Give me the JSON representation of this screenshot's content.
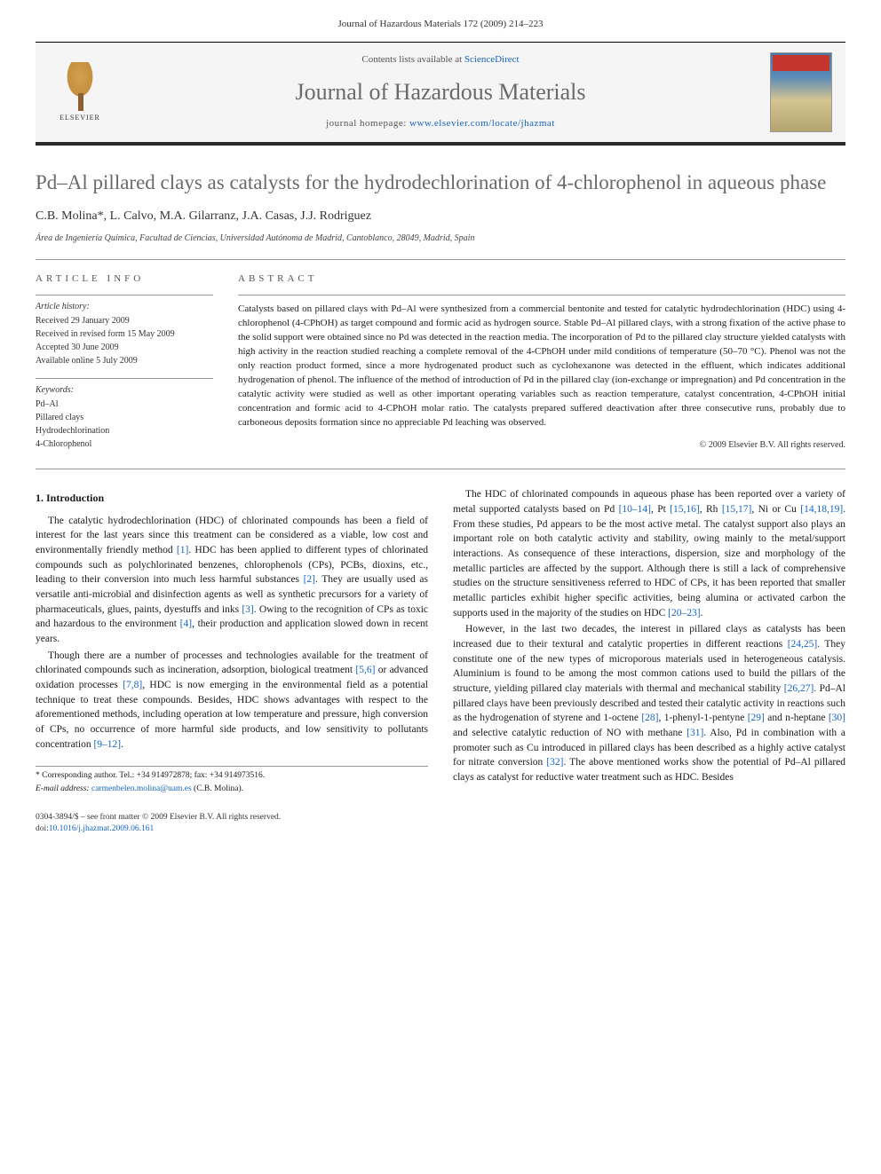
{
  "header_citation": "Journal of Hazardous Materials 172 (2009) 214–223",
  "masthead": {
    "contents_prefix": "Contents lists available at ",
    "contents_link": "ScienceDirect",
    "journal_name": "Journal of Hazardous Materials",
    "homepage_prefix": "journal homepage: ",
    "homepage_url": "www.elsevier.com/locate/jhazmat",
    "publisher_name": "ELSEVIER"
  },
  "article": {
    "title": "Pd–Al pillared clays as catalysts for the hydrodechlorination of 4-chlorophenol in aqueous phase",
    "authors_html": "C.B. Molina*, L. Calvo, M.A. Gilarranz, J.A. Casas, J.J. Rodriguez",
    "affiliation": "Área de Ingeniería Química, Facultad de Ciencias, Universidad Autónoma de Madrid, Cantoblanco, 28049, Madrid, Spain"
  },
  "article_info": {
    "heading": "article info",
    "history_label": "Article history:",
    "received": "Received 29 January 2009",
    "revised": "Received in revised form 15 May 2009",
    "accepted": "Accepted 30 June 2009",
    "online": "Available online 5 July 2009",
    "keywords_label": "Keywords:",
    "keywords": [
      "Pd–Al",
      "Pillared clays",
      "Hydrodechlorination",
      "4-Chlorophenol"
    ]
  },
  "abstract": {
    "heading": "abstract",
    "text": "Catalysts based on pillared clays with Pd–Al were synthesized from a commercial bentonite and tested for catalytic hydrodechlorination (HDC) using 4-chlorophenol (4-CPhOH) as target compound and formic acid as hydrogen source. Stable Pd–Al pillared clays, with a strong fixation of the active phase to the solid support were obtained since no Pd was detected in the reaction media. The incorporation of Pd to the pillared clay structure yielded catalysts with high activity in the reaction studied reaching a complete removal of the 4-CPhOH under mild conditions of temperature (50–70 °C). Phenol was not the only reaction product formed, since a more hydrogenated product such as cyclohexanone was detected in the effluent, which indicates additional hydrogenation of phenol. The influence of the method of introduction of Pd in the pillared clay (ion-exchange or impregnation) and Pd concentration in the catalytic activity were studied as well as other important operating variables such as reaction temperature, catalyst concentration, 4-CPhOH initial concentration and formic acid to 4-CPhOH molar ratio. The catalysts prepared suffered deactivation after three consecutive runs, probably due to carboneous deposits formation since no appreciable Pd leaching was observed.",
    "copyright": "© 2009 Elsevier B.V. All rights reserved."
  },
  "body": {
    "section1_heading": "1. Introduction",
    "p1_pre": "The catalytic hydrodechlorination (HDC) of chlorinated compounds has been a field of interest for the last years since this treatment can be considered as a viable, low cost and environmentally friendly method ",
    "p1_ref1": "[1]",
    "p1_mid1": ". HDC has been applied to different types of chlorinated compounds such as polychlorinated benzenes, chlorophenols (CPs), PCBs, dioxins, etc., leading to their conversion into much less harmful substances ",
    "p1_ref2": "[2]",
    "p1_mid2": ". They are usually used as versatile anti-microbial and disinfection agents as well as synthetic precursors for a variety of pharmaceuticals, glues, paints, dyestuffs and inks ",
    "p1_ref3": "[3]",
    "p1_mid3": ". Owing to the recognition of CPs as toxic and hazardous to the environment ",
    "p1_ref4": "[4]",
    "p1_post": ", their production and application slowed down in recent years.",
    "p2_pre": "Though there are a number of processes and technologies available for the treatment of chlorinated compounds such as incineration, adsorption, biological treatment ",
    "p2_ref1": "[5,6]",
    "p2_mid1": " or advanced oxidation processes ",
    "p2_ref2": "[7,8]",
    "p2_mid2": ", HDC is now emerging in the environmental field as a potential technique to treat these compounds. Besides, HDC shows advantages with respect to the aforementioned methods, including operation at low temperature and pressure, high conversion of CPs, no occurrence of more harmful side products, and low sensitivity to pollutants concentration ",
    "p2_ref3": "[9–12]",
    "p2_post": ".",
    "p3_pre": "The HDC of chlorinated compounds in aqueous phase has been reported over a variety of metal supported catalysts based on Pd ",
    "p3_ref1": "[10–14]",
    "p3_mid1": ", Pt ",
    "p3_ref2": "[15,16]",
    "p3_mid2": ", Rh ",
    "p3_ref3": "[15,17]",
    "p3_mid3": ", Ni or Cu ",
    "p3_ref4": "[14,18,19]",
    "p3_mid4": ". From these studies, Pd appears to be the most active metal. The catalyst support also plays an important role on both catalytic activity and stability, owing mainly to the metal/support interactions. As consequence of these interactions, dispersion, size and morphology of the metallic particles are affected by the support. Although there is still a lack of comprehensive studies on the structure sensitiveness referred to HDC of CPs, it has been reported that smaller metallic particles exhibit higher specific activities, being alumina or activated carbon the supports used in the majority of the studies on HDC ",
    "p3_ref5": "[20–23]",
    "p3_post": ".",
    "p4_pre": "However, in the last two decades, the interest in pillared clays as catalysts has been increased due to their textural and catalytic properties in different reactions ",
    "p4_ref1": "[24,25]",
    "p4_mid1": ". They constitute one of the new types of microporous materials used in heterogeneous catalysis. Aluminium is found to be among the most common cations used to build the pillars of the structure, yielding pillared clay materials with thermal and mechanical stability ",
    "p4_ref2": "[26,27]",
    "p4_mid2": ". Pd–Al pillared clays have been previously described and tested their catalytic activity in reactions such as the hydrogenation of styrene and 1-octene ",
    "p4_ref3": "[28]",
    "p4_mid3": ", 1-phenyl-1-pentyne ",
    "p4_ref4": "[29]",
    "p4_mid4": " and n-heptane ",
    "p4_ref5": "[30]",
    "p4_mid5": " and selective catalytic reduction of NO with methane ",
    "p4_ref6": "[31]",
    "p4_mid6": ". Also, Pd in combination with a promoter such as Cu introduced in pillared clays has been described as a highly active catalyst for nitrate conversion ",
    "p4_ref7": "[32]",
    "p4_post": ". The above mentioned works show the potential of Pd–Al pillared clays as catalyst for reductive water treatment such as HDC. Besides"
  },
  "footnote": {
    "corr_label": "* Corresponding author. Tel.: +34 914972878; fax: +34 914973516.",
    "email_label": "E-mail address: ",
    "email": "carmenbelen.molina@uam.es",
    "email_suffix": " (C.B. Molina)."
  },
  "footer": {
    "issn_line": "0304-3894/$ – see front matter © 2009 Elsevier B.V. All rights reserved.",
    "doi_label": "doi:",
    "doi": "10.1016/j.jhazmat.2009.06.161"
  },
  "colors": {
    "link": "#1565c0",
    "title_gray": "#6a6a6a",
    "text": "#1a1a1a",
    "rule": "#999999"
  }
}
